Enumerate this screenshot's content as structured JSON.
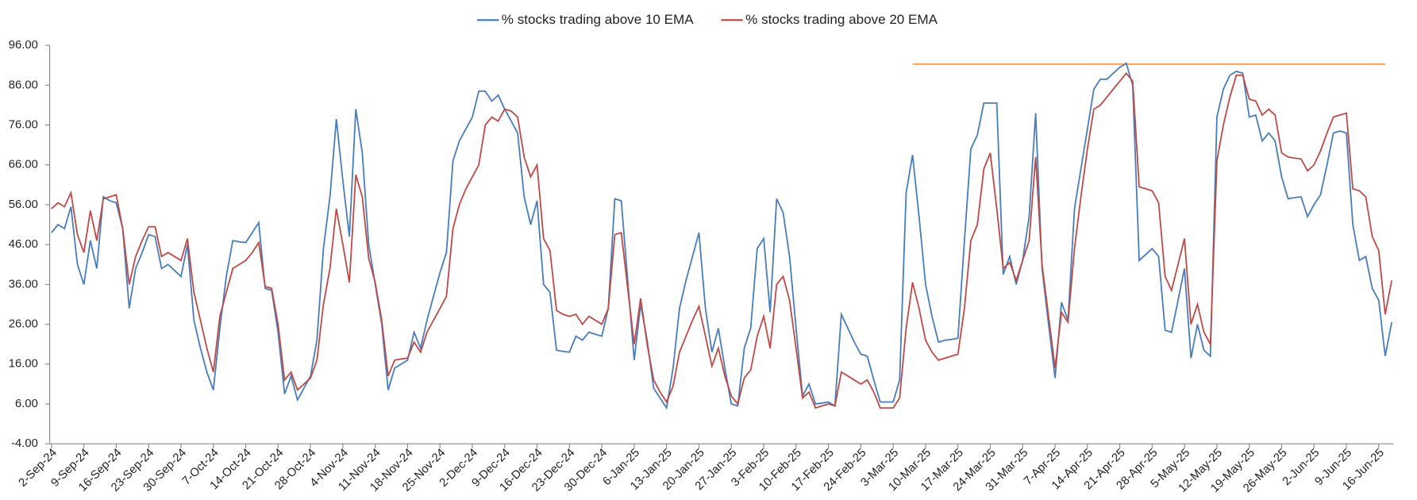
{
  "chart_data": {
    "type": "line",
    "categories": [
      "2-Sep-24",
      null,
      null,
      null,
      null,
      "9-Sep-24",
      null,
      null,
      null,
      null,
      "16-Sep-24",
      null,
      null,
      null,
      null,
      "23-Sep-24",
      null,
      null,
      null,
      null,
      "30-Sep-24",
      null,
      null,
      null,
      null,
      "7-Oct-24",
      null,
      null,
      null,
      null,
      "14-Oct-24",
      null,
      null,
      null,
      null,
      "21-Oct-24",
      null,
      null,
      null,
      null,
      "28-Oct-24",
      null,
      null,
      null,
      null,
      "4-Nov-24",
      null,
      null,
      null,
      null,
      "11-Nov-24",
      null,
      null,
      null,
      null,
      "18-Nov-24",
      null,
      null,
      null,
      null,
      "25-Nov-24",
      null,
      null,
      null,
      null,
      "2-Dec-24",
      null,
      null,
      null,
      null,
      "9-Dec-24",
      null,
      null,
      null,
      null,
      "16-Dec-24",
      null,
      null,
      null,
      null,
      "23-Dec-24",
      null,
      null,
      null,
      null,
      "30-Dec-24",
      null,
      null,
      null,
      null,
      "6-Jan-25",
      null,
      null,
      null,
      null,
      "13-Jan-25",
      null,
      null,
      null,
      null,
      "20-Jan-25",
      null,
      null,
      null,
      null,
      "27-Jan-25",
      null,
      null,
      null,
      null,
      "3-Feb-25",
      null,
      null,
      null,
      null,
      "10-Feb-25",
      null,
      null,
      null,
      null,
      "17-Feb-25",
      null,
      null,
      null,
      null,
      "24-Feb-25",
      null,
      null,
      null,
      null,
      "3-Mar-25",
      null,
      null,
      null,
      null,
      "10-Mar-25",
      null,
      null,
      null,
      null,
      "17-Mar-25",
      null,
      null,
      null,
      null,
      "24-Mar-25",
      null,
      null,
      null,
      null,
      "31-Mar-25",
      null,
      null,
      null,
      null,
      "7-Apr-25",
      null,
      null,
      null,
      null,
      "14-Apr-25",
      null,
      null,
      null,
      null,
      "21-Apr-25",
      null,
      null,
      null,
      null,
      "28-Apr-25",
      null,
      null,
      null,
      null,
      "5-May-25",
      null,
      null,
      null,
      null,
      "12-May-25",
      null,
      null,
      null,
      null,
      "19-May-25",
      null,
      null,
      null,
      null,
      "26-May-25",
      null,
      null,
      null,
      null,
      "2-Jun-25",
      null,
      null,
      null,
      null,
      "9-Jun-25",
      null,
      null,
      null,
      null,
      "16-Jun-25",
      null,
      null
    ],
    "series": [
      {
        "name": "% stocks trading above 10 EMA",
        "color": "#4a7ebb",
        "values": [
          49,
          51,
          50,
          55.5,
          41,
          36,
          47,
          40,
          58,
          57,
          56.5,
          50,
          30,
          40,
          44,
          48.5,
          48,
          40,
          41,
          39.5,
          38,
          46,
          27,
          20,
          14,
          9.5,
          25,
          38,
          47,
          46.7,
          46.5,
          49,
          51.5,
          35,
          34.5,
          24,
          8.5,
          13,
          7,
          10,
          13,
          22,
          45,
          58,
          77.5,
          62,
          48,
          80,
          69,
          46,
          36,
          26,
          9.5,
          15,
          16,
          17,
          24,
          20,
          27,
          33,
          39,
          44,
          67,
          72,
          75,
          78,
          84.5,
          84.5,
          82,
          83.5,
          80,
          77,
          74,
          58,
          51,
          57,
          36,
          34,
          19.5,
          19.2,
          19,
          23,
          22,
          24,
          23.5,
          23,
          30,
          57.5,
          57,
          37,
          17,
          31,
          22,
          10,
          7.5,
          5,
          15,
          30,
          37,
          43,
          49,
          30,
          19,
          25,
          15,
          6,
          5.5,
          20,
          25,
          45,
          47.5,
          29,
          57.5,
          54,
          43,
          25,
          8,
          11,
          6,
          6.2,
          6.5,
          5.5,
          28.5,
          25,
          21.5,
          18.5,
          18,
          12,
          6.5,
          6.5,
          6.5,
          12,
          59,
          68.5,
          53,
          36,
          28,
          21.5,
          22,
          22.2,
          22.5,
          47,
          70,
          73.5,
          81.5,
          81.5,
          81.5,
          38.5,
          43,
          36,
          42,
          53,
          79,
          40,
          26,
          12.5,
          31.5,
          27,
          55,
          65,
          75,
          85,
          87.5,
          87.5,
          89,
          90.5,
          91.5,
          86,
          42,
          43.5,
          45,
          43,
          24.5,
          24,
          32,
          40,
          17.5,
          26,
          19.5,
          18,
          78,
          85,
          88.5,
          89.5,
          89,
          78,
          78.5,
          72,
          74,
          72,
          63,
          57.5,
          57.8,
          58,
          53,
          56,
          58.5,
          66,
          74,
          74.5,
          74,
          51,
          42,
          43,
          35,
          32,
          18,
          26.5
        ]
      },
      {
        "name": "% stocks trading above 20 EMA",
        "color": "#be4b48",
        "values": [
          55,
          56.5,
          55.5,
          59,
          48.5,
          44,
          54.5,
          47,
          57.5,
          58,
          58.5,
          50,
          36,
          43,
          47,
          50.5,
          50.5,
          43,
          44,
          43,
          42,
          47.5,
          34,
          27,
          20,
          14,
          28,
          34,
          40,
          41,
          42,
          44,
          46.5,
          35.5,
          35,
          26,
          12,
          14,
          9.5,
          11,
          12.5,
          17,
          31,
          40,
          55,
          46,
          36.5,
          63.5,
          58,
          42.5,
          36.5,
          27,
          13,
          17,
          17.3,
          17.5,
          21.5,
          19,
          24,
          27,
          30,
          33,
          50,
          56,
          60,
          63,
          66,
          76,
          78,
          77,
          80,
          79.5,
          78,
          68,
          63,
          66,
          47.5,
          44.5,
          29.5,
          28.5,
          28,
          28.5,
          26,
          28,
          27,
          26,
          30,
          48.5,
          49,
          35,
          21,
          32.5,
          21,
          12,
          9,
          6.5,
          10.5,
          19,
          23,
          27,
          30.5,
          23,
          15.5,
          20,
          13,
          8,
          6,
          12.5,
          14.5,
          23,
          28,
          20,
          36,
          38,
          32,
          20,
          7.5,
          9,
          5,
          5.5,
          6,
          5.5,
          14,
          13,
          12,
          11,
          12,
          9,
          5,
          5,
          5,
          7.5,
          25,
          36.5,
          30,
          22,
          19,
          17,
          17.5,
          18,
          18.5,
          30,
          47,
          51,
          65,
          69,
          55,
          40,
          41.5,
          37,
          42,
          47,
          68,
          41,
          28,
          15,
          29,
          26.5,
          45,
          58,
          70,
          80,
          81,
          83,
          85,
          87,
          89,
          87,
          60.5,
          60,
          59.5,
          56.5,
          38,
          34.5,
          41,
          47.5,
          26,
          31,
          24,
          21,
          67,
          76,
          83,
          88.5,
          88.5,
          82.5,
          82,
          78.5,
          80,
          78.5,
          69,
          68,
          67.7,
          67.5,
          64.5,
          66,
          69.5,
          74,
          78,
          78.5,
          79,
          60,
          59.5,
          58,
          48,
          44.5,
          28.5,
          37
        ]
      }
    ],
    "reference_line": {
      "value": 91.3,
      "color": "#f79646",
      "from": 133,
      "to": 206
    },
    "ylim": [
      -4,
      96
    ],
    "yticks": [
      {
        "value": -4,
        "label": "-4.00"
      },
      {
        "value": 6,
        "label": "6.00"
      },
      {
        "value": 16,
        "label": "16.00"
      },
      {
        "value": 26,
        "label": "26.00"
      },
      {
        "value": 36,
        "label": "36.00"
      },
      {
        "value": 46,
        "label": "46.00"
      },
      {
        "value": 56,
        "label": "56.00"
      },
      {
        "value": 66,
        "label": "66.00"
      },
      {
        "value": 76,
        "label": "76.00"
      },
      {
        "value": 86,
        "label": "86.00"
      },
      {
        "value": 96,
        "label": "96.00"
      }
    ],
    "grid": false,
    "legend": "top"
  }
}
